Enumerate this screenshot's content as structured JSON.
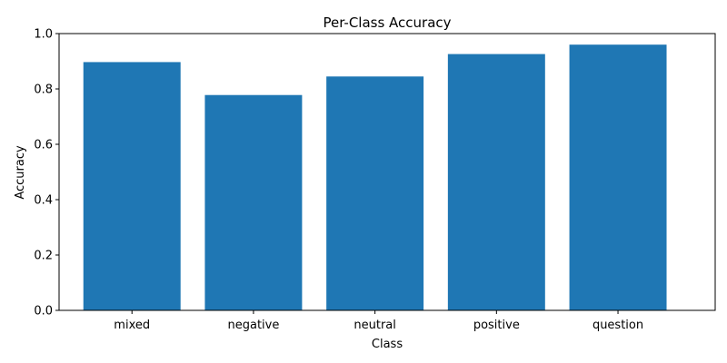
{
  "chart_data": {
    "type": "bar",
    "title": "Per-Class Accuracy",
    "xlabel": "Class",
    "ylabel": "Accuracy",
    "categories": [
      "mixed",
      "negative",
      "neutral",
      "positive",
      "question"
    ],
    "values": [
      0.897,
      0.778,
      0.845,
      0.926,
      0.96
    ],
    "ylim": [
      0,
      1.0
    ],
    "yticks": [
      "0.0",
      "0.2",
      "0.4",
      "0.6",
      "0.8",
      "1.0"
    ],
    "grid": false,
    "bar_color": "#1f77b4"
  }
}
